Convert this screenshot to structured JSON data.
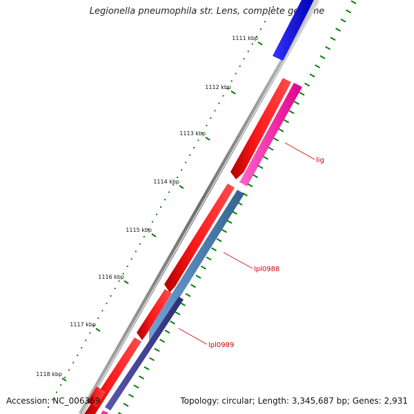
{
  "title": "Legionella pneumophila str. Lens, complete genome",
  "footer": {
    "accession": "Accession: NC_006369",
    "summary": "Topology: circular; Length: 3,345,687 bp; Genes: 2,931"
  },
  "ticks": [
    {
      "label": "1111 kbp"
    },
    {
      "label": "1112 kbp"
    },
    {
      "label": "1113 kbp"
    },
    {
      "label": "1114 kbp"
    },
    {
      "label": "1115 kbp"
    },
    {
      "label": "1116 kbp"
    },
    {
      "label": "1117 kbp"
    },
    {
      "label": "1118 kbp"
    }
  ],
  "genes": [
    {
      "label": "lig",
      "color": "#ff3399"
    },
    {
      "label": "lpl0988",
      "color": "#4d7fb3"
    },
    {
      "label": "lpl0989",
      "color": "#3d3d8f"
    }
  ],
  "colors": {
    "cds_forward": "#ff0000",
    "cds_blue": "#0000ee",
    "backbone": "#808080",
    "dotted_track": "#008000"
  }
}
